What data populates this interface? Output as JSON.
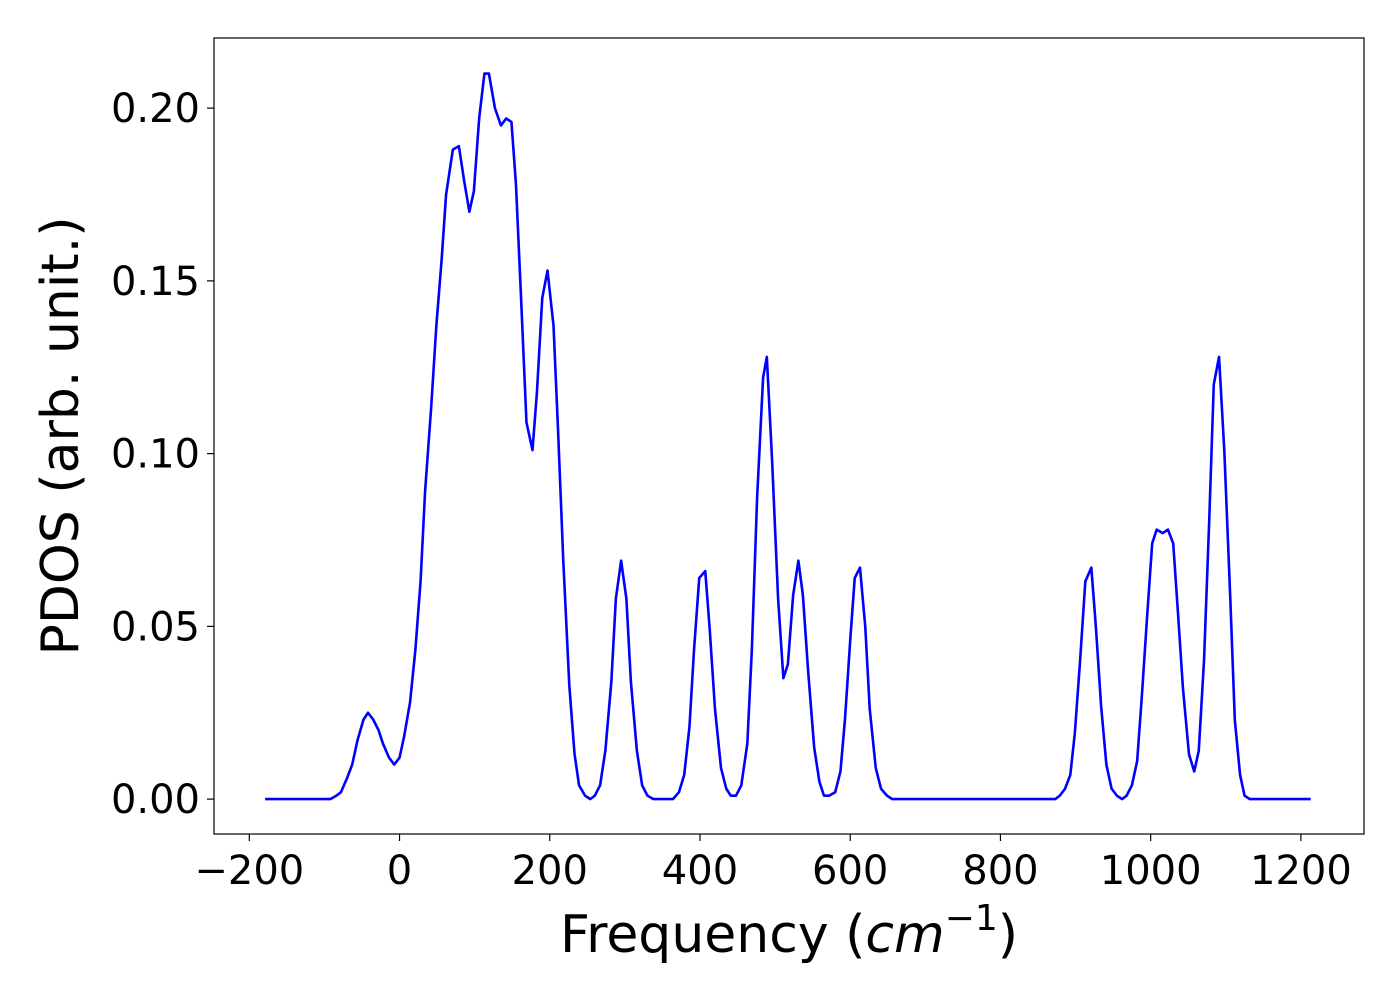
{
  "chart_data": {
    "type": "line",
    "xlabel": [
      "Frequency (",
      "cm",
      "−1",
      ")"
    ],
    "ylabel": "PDOS (arb. unit.)",
    "xlim": [
      -247,
      1284
    ],
    "ylim": [
      -0.0101,
      0.2203
    ],
    "xticks": [
      {
        "value": -200,
        "label": "−200"
      },
      0,
      200,
      400,
      600,
      800,
      1000,
      1200
    ],
    "yticks": [
      {
        "value": 0,
        "label": "0.00"
      },
      {
        "value": 0.05,
        "label": "0.05"
      },
      {
        "value": 0.1,
        "label": "0.10"
      },
      {
        "value": 0.15,
        "label": "0.15"
      },
      {
        "value": 0.2,
        "label": "0.20"
      }
    ],
    "series": [
      {
        "color": "#0000ff",
        "x": [
          -179,
          -92,
          -84,
          -78,
          -70,
          -63,
          -56,
          -48,
          -42,
          -35,
          -28,
          -22,
          -14,
          -7,
          0,
          6,
          14,
          21,
          28,
          34,
          42,
          49,
          56,
          62,
          71,
          79,
          86,
          93,
          99,
          106,
          113,
          119,
          127,
          135,
          142,
          149,
          155,
          162,
          169,
          177,
          183,
          190,
          197,
          205,
          211,
          218,
          226,
          233,
          239,
          247,
          254,
          260,
          267,
          274,
          282,
          288,
          295,
          302,
          308,
          316,
          323,
          330,
          338,
          364,
          372,
          379,
          386,
          392,
          399,
          407,
          413,
          420,
          428,
          435,
          441,
          448,
          455,
          463,
          469,
          476,
          484,
          489,
          496,
          504,
          511,
          517,
          524,
          531,
          537,
          544,
          552,
          559,
          565,
          572,
          580,
          587,
          593,
          600,
          606,
          613,
          620,
          626,
          634,
          641,
          649,
          656,
          873,
          879,
          886,
          893,
          899,
          906,
          913,
          921,
          927,
          934,
          941,
          948,
          955,
          962,
          968,
          975,
          982,
          988,
          995,
          1002,
          1008,
          1016,
          1023,
          1030,
          1036,
          1043,
          1051,
          1058,
          1064,
          1071,
          1078,
          1084,
          1091,
          1098,
          1106,
          1112,
          1119,
          1125,
          1132,
          1140,
          1213
        ],
        "values": [
          0,
          0,
          0.001,
          0.002,
          0.006,
          0.01,
          0.017,
          0.023,
          0.025,
          0.023,
          0.02,
          0.016,
          0.012,
          0.01,
          0.012,
          0.018,
          0.028,
          0.043,
          0.063,
          0.089,
          0.113,
          0.137,
          0.156,
          0.175,
          0.188,
          0.189,
          0.179,
          0.17,
          0.176,
          0.197,
          0.21,
          0.21,
          0.2,
          0.195,
          0.197,
          0.196,
          0.178,
          0.144,
          0.109,
          0.101,
          0.118,
          0.145,
          0.153,
          0.137,
          0.107,
          0.069,
          0.033,
          0.013,
          0.004,
          0.001,
          0,
          0.001,
          0.004,
          0.014,
          0.034,
          0.058,
          0.069,
          0.058,
          0.034,
          0.014,
          0.004,
          0.001,
          0,
          0,
          0.002,
          0.007,
          0.021,
          0.043,
          0.064,
          0.066,
          0.049,
          0.026,
          0.009,
          0.003,
          0.001,
          0.001,
          0.004,
          0.016,
          0.043,
          0.087,
          0.122,
          0.128,
          0.098,
          0.058,
          0.035,
          0.039,
          0.059,
          0.069,
          0.059,
          0.037,
          0.015,
          0.005,
          0.001,
          0.001,
          0.002,
          0.008,
          0.023,
          0.046,
          0.064,
          0.067,
          0.05,
          0.026,
          0.009,
          0.003,
          0.001,
          0,
          0,
          0.001,
          0.003,
          0.007,
          0.019,
          0.04,
          0.063,
          0.067,
          0.05,
          0.027,
          0.01,
          0.003,
          0.001,
          0,
          0.001,
          0.004,
          0.011,
          0.029,
          0.052,
          0.074,
          0.078,
          0.077,
          0.078,
          0.074,
          0.055,
          0.032,
          0.013,
          0.008,
          0.014,
          0.04,
          0.081,
          0.12,
          0.128,
          0.101,
          0.058,
          0.023,
          0.007,
          0.001,
          0,
          0,
          0
        ]
      }
    ]
  }
}
